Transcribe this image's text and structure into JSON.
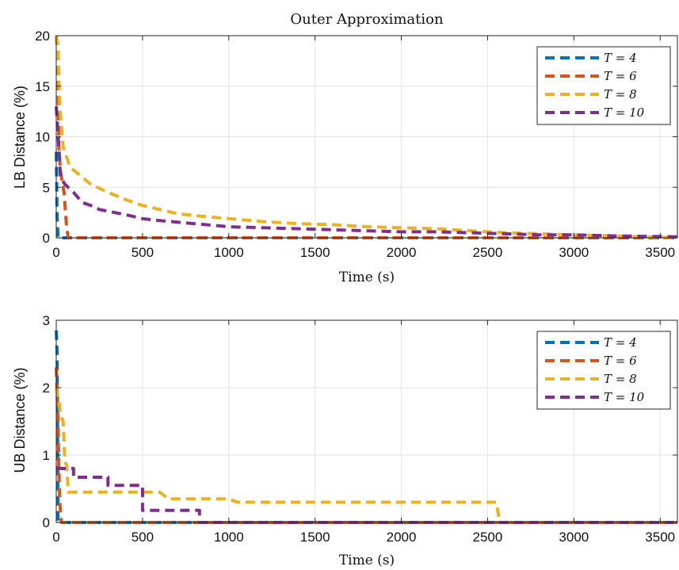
{
  "chart_data": [
    {
      "type": "line",
      "title": "Outer Approximation",
      "xlabel": "Time (s)",
      "ylabel": "LB Distance (%)",
      "xlim": [
        0,
        3600
      ],
      "ylim": [
        0,
        20
      ],
      "xticks": [
        0,
        500,
        1000,
        1500,
        2000,
        2500,
        3000,
        3500
      ],
      "yticks": [
        0,
        5,
        10,
        15,
        20
      ],
      "grid": true,
      "legend_position": "top-right",
      "series": [
        {
          "name": "T = 4",
          "color": "#0072BD",
          "points": [
            [
              0,
              8.5
            ],
            [
              5,
              2.0
            ],
            [
              10,
              0
            ],
            [
              3600,
              0
            ]
          ]
        },
        {
          "name": "T = 6",
          "color": "#D95319",
          "points": [
            [
              0,
              20.0
            ],
            [
              10,
              18.0
            ],
            [
              15,
              9.0
            ],
            [
              25,
              6.5
            ],
            [
              45,
              4.5
            ],
            [
              60,
              1.0
            ],
            [
              70,
              0
            ],
            [
              3600,
              0
            ]
          ]
        },
        {
          "name": "T = 8",
          "color": "#EDB120",
          "points": [
            [
              0,
              20.0
            ],
            [
              10,
              19.0
            ],
            [
              20,
              13.0
            ],
            [
              30,
              11.0
            ],
            [
              40,
              9.0
            ],
            [
              60,
              8.0
            ],
            [
              80,
              7.0
            ],
            [
              150,
              6.0
            ],
            [
              200,
              5.3
            ],
            [
              300,
              4.5
            ],
            [
              400,
              3.8
            ],
            [
              500,
              3.2
            ],
            [
              600,
              2.8
            ],
            [
              700,
              2.4
            ],
            [
              800,
              2.2
            ],
            [
              1000,
              1.9
            ],
            [
              1200,
              1.6
            ],
            [
              1400,
              1.4
            ],
            [
              1600,
              1.3
            ],
            [
              1800,
              1.1
            ],
            [
              2000,
              1.0
            ],
            [
              2200,
              0.9
            ],
            [
              2400,
              0.7
            ],
            [
              2600,
              0.5
            ],
            [
              2800,
              0.4
            ],
            [
              3000,
              0.3
            ],
            [
              3200,
              0.2
            ],
            [
              3400,
              0.1
            ],
            [
              3600,
              0.0
            ]
          ]
        },
        {
          "name": "T = 10",
          "color": "#7E2F8E",
          "points": [
            [
              0,
              13.0
            ],
            [
              15,
              9.0
            ],
            [
              25,
              6.0
            ],
            [
              50,
              5.3
            ],
            [
              100,
              4.5
            ],
            [
              150,
              3.5
            ],
            [
              200,
              3.2
            ],
            [
              250,
              2.8
            ],
            [
              400,
              2.3
            ],
            [
              500,
              1.9
            ],
            [
              600,
              1.7
            ],
            [
              800,
              1.4
            ],
            [
              1000,
              1.1
            ],
            [
              1200,
              1.0
            ],
            [
              1400,
              0.9
            ],
            [
              1600,
              0.8
            ],
            [
              1800,
              0.7
            ],
            [
              2000,
              0.6
            ],
            [
              2200,
              0.6
            ],
            [
              2400,
              0.5
            ],
            [
              2600,
              0.4
            ],
            [
              2800,
              0.3
            ],
            [
              3000,
              0.3
            ],
            [
              3200,
              0.2
            ],
            [
              3400,
              0.15
            ],
            [
              3600,
              0.1
            ]
          ]
        }
      ]
    },
    {
      "type": "line",
      "title": "",
      "xlabel": "Time (s)",
      "ylabel": "UB Distance (%)",
      "xlim": [
        0,
        3600
      ],
      "ylim": [
        0,
        3
      ],
      "xticks": [
        0,
        500,
        1000,
        1500,
        2000,
        2500,
        3000,
        3500
      ],
      "yticks": [
        0,
        1,
        2,
        3
      ],
      "grid": true,
      "legend_position": "top-right",
      "series": [
        {
          "name": "T = 4",
          "color": "#0072BD",
          "points": [
            [
              0,
              2.85
            ],
            [
              5,
              2.5
            ],
            [
              10,
              0
            ],
            [
              3600,
              0
            ]
          ]
        },
        {
          "name": "T = 6",
          "color": "#D95319",
          "points": [
            [
              0,
              2.3
            ],
            [
              10,
              1.5
            ],
            [
              15,
              0.8
            ],
            [
              20,
              0.3
            ],
            [
              30,
              0
            ],
            [
              3600,
              0
            ]
          ]
        },
        {
          "name": "T = 8",
          "color": "#EDB120",
          "points": [
            [
              0,
              2.0
            ],
            [
              15,
              1.8
            ],
            [
              25,
              1.6
            ],
            [
              40,
              1.5
            ],
            [
              50,
              0.9
            ],
            [
              60,
              0.85
            ],
            [
              70,
              0.45
            ],
            [
              400,
              0.45
            ],
            [
              500,
              0.45
            ],
            [
              600,
              0.45
            ],
            [
              650,
              0.35
            ],
            [
              1000,
              0.35
            ],
            [
              1050,
              0.3
            ],
            [
              2550,
              0.3
            ],
            [
              2570,
              0
            ],
            [
              3600,
              0
            ]
          ]
        },
        {
          "name": "T = 10",
          "color": "#7E2F8E",
          "points": [
            [
              0,
              0.8
            ],
            [
              100,
              0.8
            ],
            [
              100,
              0.67
            ],
            [
              300,
              0.67
            ],
            [
              300,
              0.55
            ],
            [
              500,
              0.55
            ],
            [
              500,
              0.18
            ],
            [
              830,
              0.18
            ],
            [
              830,
              0
            ],
            [
              3600,
              0
            ]
          ]
        }
      ]
    }
  ]
}
